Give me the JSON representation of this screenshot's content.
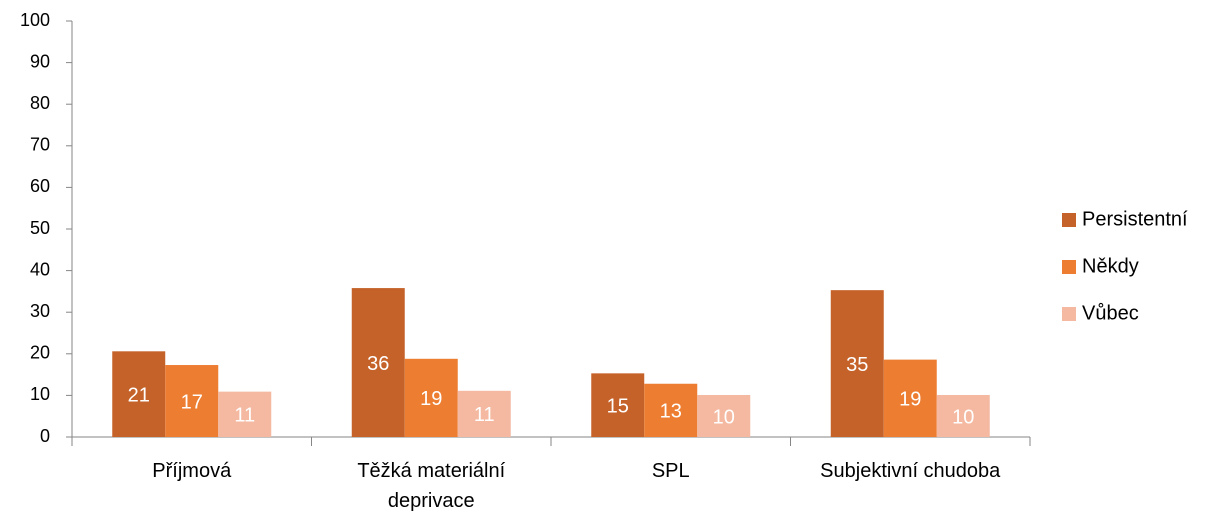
{
  "chart_data": {
    "type": "bar",
    "categories": [
      "Příjmová",
      "Těžká materiální deprivace",
      "SPL",
      "Subjektivní chudoba"
    ],
    "series": [
      {
        "name": "Persistentní",
        "color": "#c5622a",
        "values": [
          20.6,
          35.8,
          15.3,
          35.3
        ],
        "value_labels": [
          "21",
          "36",
          "15",
          "35"
        ]
      },
      {
        "name": "Někdy",
        "color": "#ed7d31",
        "values": [
          17.3,
          18.8,
          12.8,
          18.6
        ],
        "value_labels": [
          "17",
          "19",
          "13",
          "19"
        ]
      },
      {
        "name": "Vůbec",
        "color": "#f4b9a0",
        "values": [
          10.9,
          11.1,
          10.1,
          10.1
        ],
        "value_labels": [
          "11",
          "11",
          "10",
          "10"
        ]
      }
    ],
    "ylim": [
      0,
      100
    ],
    "yticks": [
      0,
      10,
      20,
      30,
      40,
      50,
      60,
      70,
      80,
      90,
      100
    ],
    "grid": false,
    "legend": "right"
  }
}
